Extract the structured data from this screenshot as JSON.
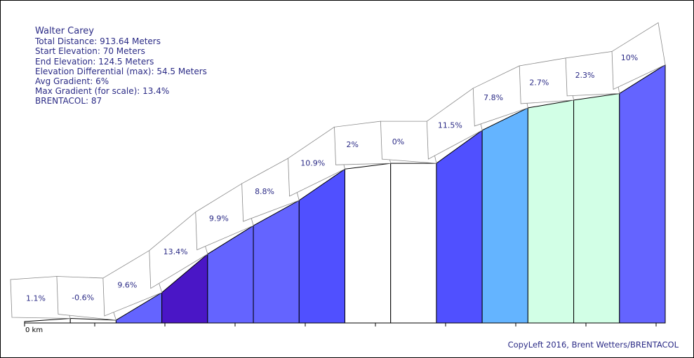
{
  "info": {
    "title": "Walter Carey",
    "total_distance": "Total Distance: 913.64 Meters",
    "start_elevation": "Start Elevation: 70 Meters",
    "end_elevation": "End Elevation: 124.5 Meters",
    "elevation_diff": "Elevation Differential (max): 54.5 Meters",
    "avg_gradient": "Avg Gradient: 6%",
    "max_gradient": "Max Gradient (for scale): 13.4%",
    "brentacol": "BRENTACOL: 87"
  },
  "copyright": "CopyLeft 2016, Brent Wetters/BRENTACOL",
  "x_axis_label": "0 km",
  "chart_data": {
    "type": "area",
    "title": "Walter Carey",
    "xlabel": "",
    "ylabel": "",
    "grid": false,
    "segments": [
      {
        "label": "1.1%",
        "gradient": 1.1,
        "color": "#ffffff"
      },
      {
        "label": "-0.6%",
        "gradient": -0.6,
        "color": "#ffffff"
      },
      {
        "label": "9.6%",
        "gradient": 9.6,
        "color": "#6464ff"
      },
      {
        "label": "13.4%",
        "gradient": 13.4,
        "color": "#4a16c6"
      },
      {
        "label": "9.9%",
        "gradient": 9.9,
        "color": "#6464ff"
      },
      {
        "label": "8.8%",
        "gradient": 8.8,
        "color": "#6464ff"
      },
      {
        "label": "10.9%",
        "gradient": 10.9,
        "color": "#5050ff"
      },
      {
        "label": "2%",
        "gradient": 2,
        "color": "#ffffff"
      },
      {
        "label": "0%",
        "gradient": 0,
        "color": "#ffffff"
      },
      {
        "label": "11.5%",
        "gradient": 11.5,
        "color": "#5050ff"
      },
      {
        "label": "7.8%",
        "gradient": 7.8,
        "color": "#64b4ff"
      },
      {
        "label": "2.7%",
        "gradient": 2.7,
        "color": "#d2ffe6"
      },
      {
        "label": "2.3%",
        "gradient": 2.3,
        "color": "#d2ffe6"
      },
      {
        "label": "10%",
        "gradient": 10,
        "color": "#6464ff"
      }
    ]
  }
}
